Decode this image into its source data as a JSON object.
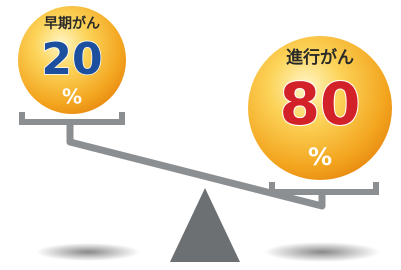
{
  "left": {
    "label": "早期がん",
    "value": 20,
    "unit": "%"
  },
  "right": {
    "label": "進行がん",
    "value": 80,
    "unit": "%"
  }
}
